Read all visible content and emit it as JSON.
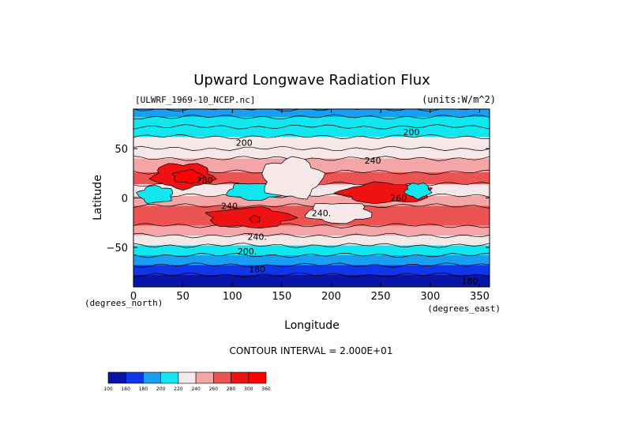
{
  "chart_data": {
    "type": "heatmap",
    "title": "Upward Longwave Radiation Flux",
    "source_label": "[ULWRF_1969-10_NCEP.nc]",
    "units_label": "(units:W/m^2)",
    "xlabel": "Longitude",
    "ylabel": "Latitude",
    "x_unit_label": "(degrees_east)",
    "y_unit_label": "(degrees_north)",
    "xlim": [
      0,
      360
    ],
    "ylim": [
      -90,
      90
    ],
    "x_ticks": [
      {
        "value": 0,
        "label": "0"
      },
      {
        "value": 50,
        "label": "50"
      },
      {
        "value": 100,
        "label": "100"
      },
      {
        "value": 150,
        "label": "150"
      },
      {
        "value": 200,
        "label": "200"
      },
      {
        "value": 250,
        "label": "250"
      },
      {
        "value": 300,
        "label": "300"
      },
      {
        "value": 350,
        "label": "350"
      }
    ],
    "y_ticks": [
      {
        "value": 50,
        "label": "50"
      },
      {
        "value": 0,
        "label": "0"
      },
      {
        "value": -50,
        "label": "−50"
      }
    ],
    "contour_interval_label": "CONTOUR INTERVAL = 2.000E+01",
    "colorbar": {
      "levels": [
        "100",
        "160",
        "180",
        "200",
        "220",
        "240",
        "260",
        "280",
        "300",
        "360"
      ],
      "colors": [
        "#0a14a6",
        "#1036e8",
        "#1a9ef2",
        "#12e6ee",
        "#f6e8e8",
        "#f4a6a6",
        "#ec5454",
        "#ee1212",
        "#ff0000"
      ]
    },
    "contour_labels": [
      {
        "text": "200",
        "lon": 112,
        "lat": 56
      },
      {
        "text": "200",
        "lon": 281,
        "lat": 67
      },
      {
        "text": "240",
        "lon": 242,
        "lat": 38
      },
      {
        "text": "280",
        "lon": 72,
        "lat": 18
      },
      {
        "text": "240",
        "lon": 97,
        "lat": -8
      },
      {
        "text": "240.",
        "lon": 190,
        "lat": -15
      },
      {
        "text": "260",
        "lon": 268,
        "lat": 0
      },
      {
        "text": "240.",
        "lon": 125,
        "lat": -39
      },
      {
        "text": "200.",
        "lon": 115,
        "lat": -54
      },
      {
        "text": "180",
        "lon": 125,
        "lat": -72
      },
      {
        "text": "180",
        "lon": 340,
        "lat": -84
      }
    ],
    "zonal_bands": [
      {
        "lat_from": 90,
        "lat_to": 82,
        "value": 180
      },
      {
        "lat_from": 82,
        "lat_to": 72,
        "value": 200
      },
      {
        "lat_from": 72,
        "lat_to": 62,
        "value": 210
      },
      {
        "lat_from": 62,
        "lat_to": 50,
        "value": 225
      },
      {
        "lat_from": 50,
        "lat_to": 40,
        "value": 235
      },
      {
        "lat_from": 40,
        "lat_to": 26,
        "value": 250
      },
      {
        "lat_from": 26,
        "lat_to": 14,
        "value": 265
      },
      {
        "lat_from": 14,
        "lat_to": 2,
        "value": 235
      },
      {
        "lat_from": 2,
        "lat_to": -8,
        "value": 255
      },
      {
        "lat_from": -8,
        "lat_to": -28,
        "value": 268
      },
      {
        "lat_from": -28,
        "lat_to": -38,
        "value": 250
      },
      {
        "lat_from": -38,
        "lat_to": -48,
        "value": 232
      },
      {
        "lat_from": -48,
        "lat_to": -58,
        "value": 212
      },
      {
        "lat_from": -58,
        "lat_to": -68,
        "value": 195
      },
      {
        "lat_from": -68,
        "lat_to": -78,
        "value": 178
      },
      {
        "lat_from": -78,
        "lat_to": -90,
        "value": 150
      }
    ],
    "regions": [
      {
        "value": 285,
        "lon0": 20,
        "lon1": 80,
        "lat0": 10,
        "lat1": 35
      },
      {
        "value": 300,
        "lon0": 40,
        "lon1": 70,
        "lat0": 15,
        "lat1": 28
      },
      {
        "value": 200,
        "lon0": 5,
        "lon1": 40,
        "lat0": -5,
        "lat1": 12
      },
      {
        "value": 205,
        "lon0": 95,
        "lon1": 150,
        "lat0": -2,
        "lat1": 15
      },
      {
        "value": 238,
        "lon0": 130,
        "lon1": 190,
        "lat0": 0,
        "lat1": 40
      },
      {
        "value": 280,
        "lon0": 210,
        "lon1": 300,
        "lat0": -5,
        "lat1": 15
      },
      {
        "value": 205,
        "lon0": 275,
        "lon1": 300,
        "lat0": 0,
        "lat1": 15
      },
      {
        "value": 285,
        "lon0": 75,
        "lon1": 160,
        "lat0": -30,
        "lat1": -10
      },
      {
        "value": 300,
        "lon0": 118,
        "lon1": 128,
        "lat0": -25,
        "lat1": -18
      },
      {
        "value": 230,
        "lon0": 175,
        "lon1": 240,
        "lat0": -25,
        "lat1": -5
      }
    ]
  }
}
